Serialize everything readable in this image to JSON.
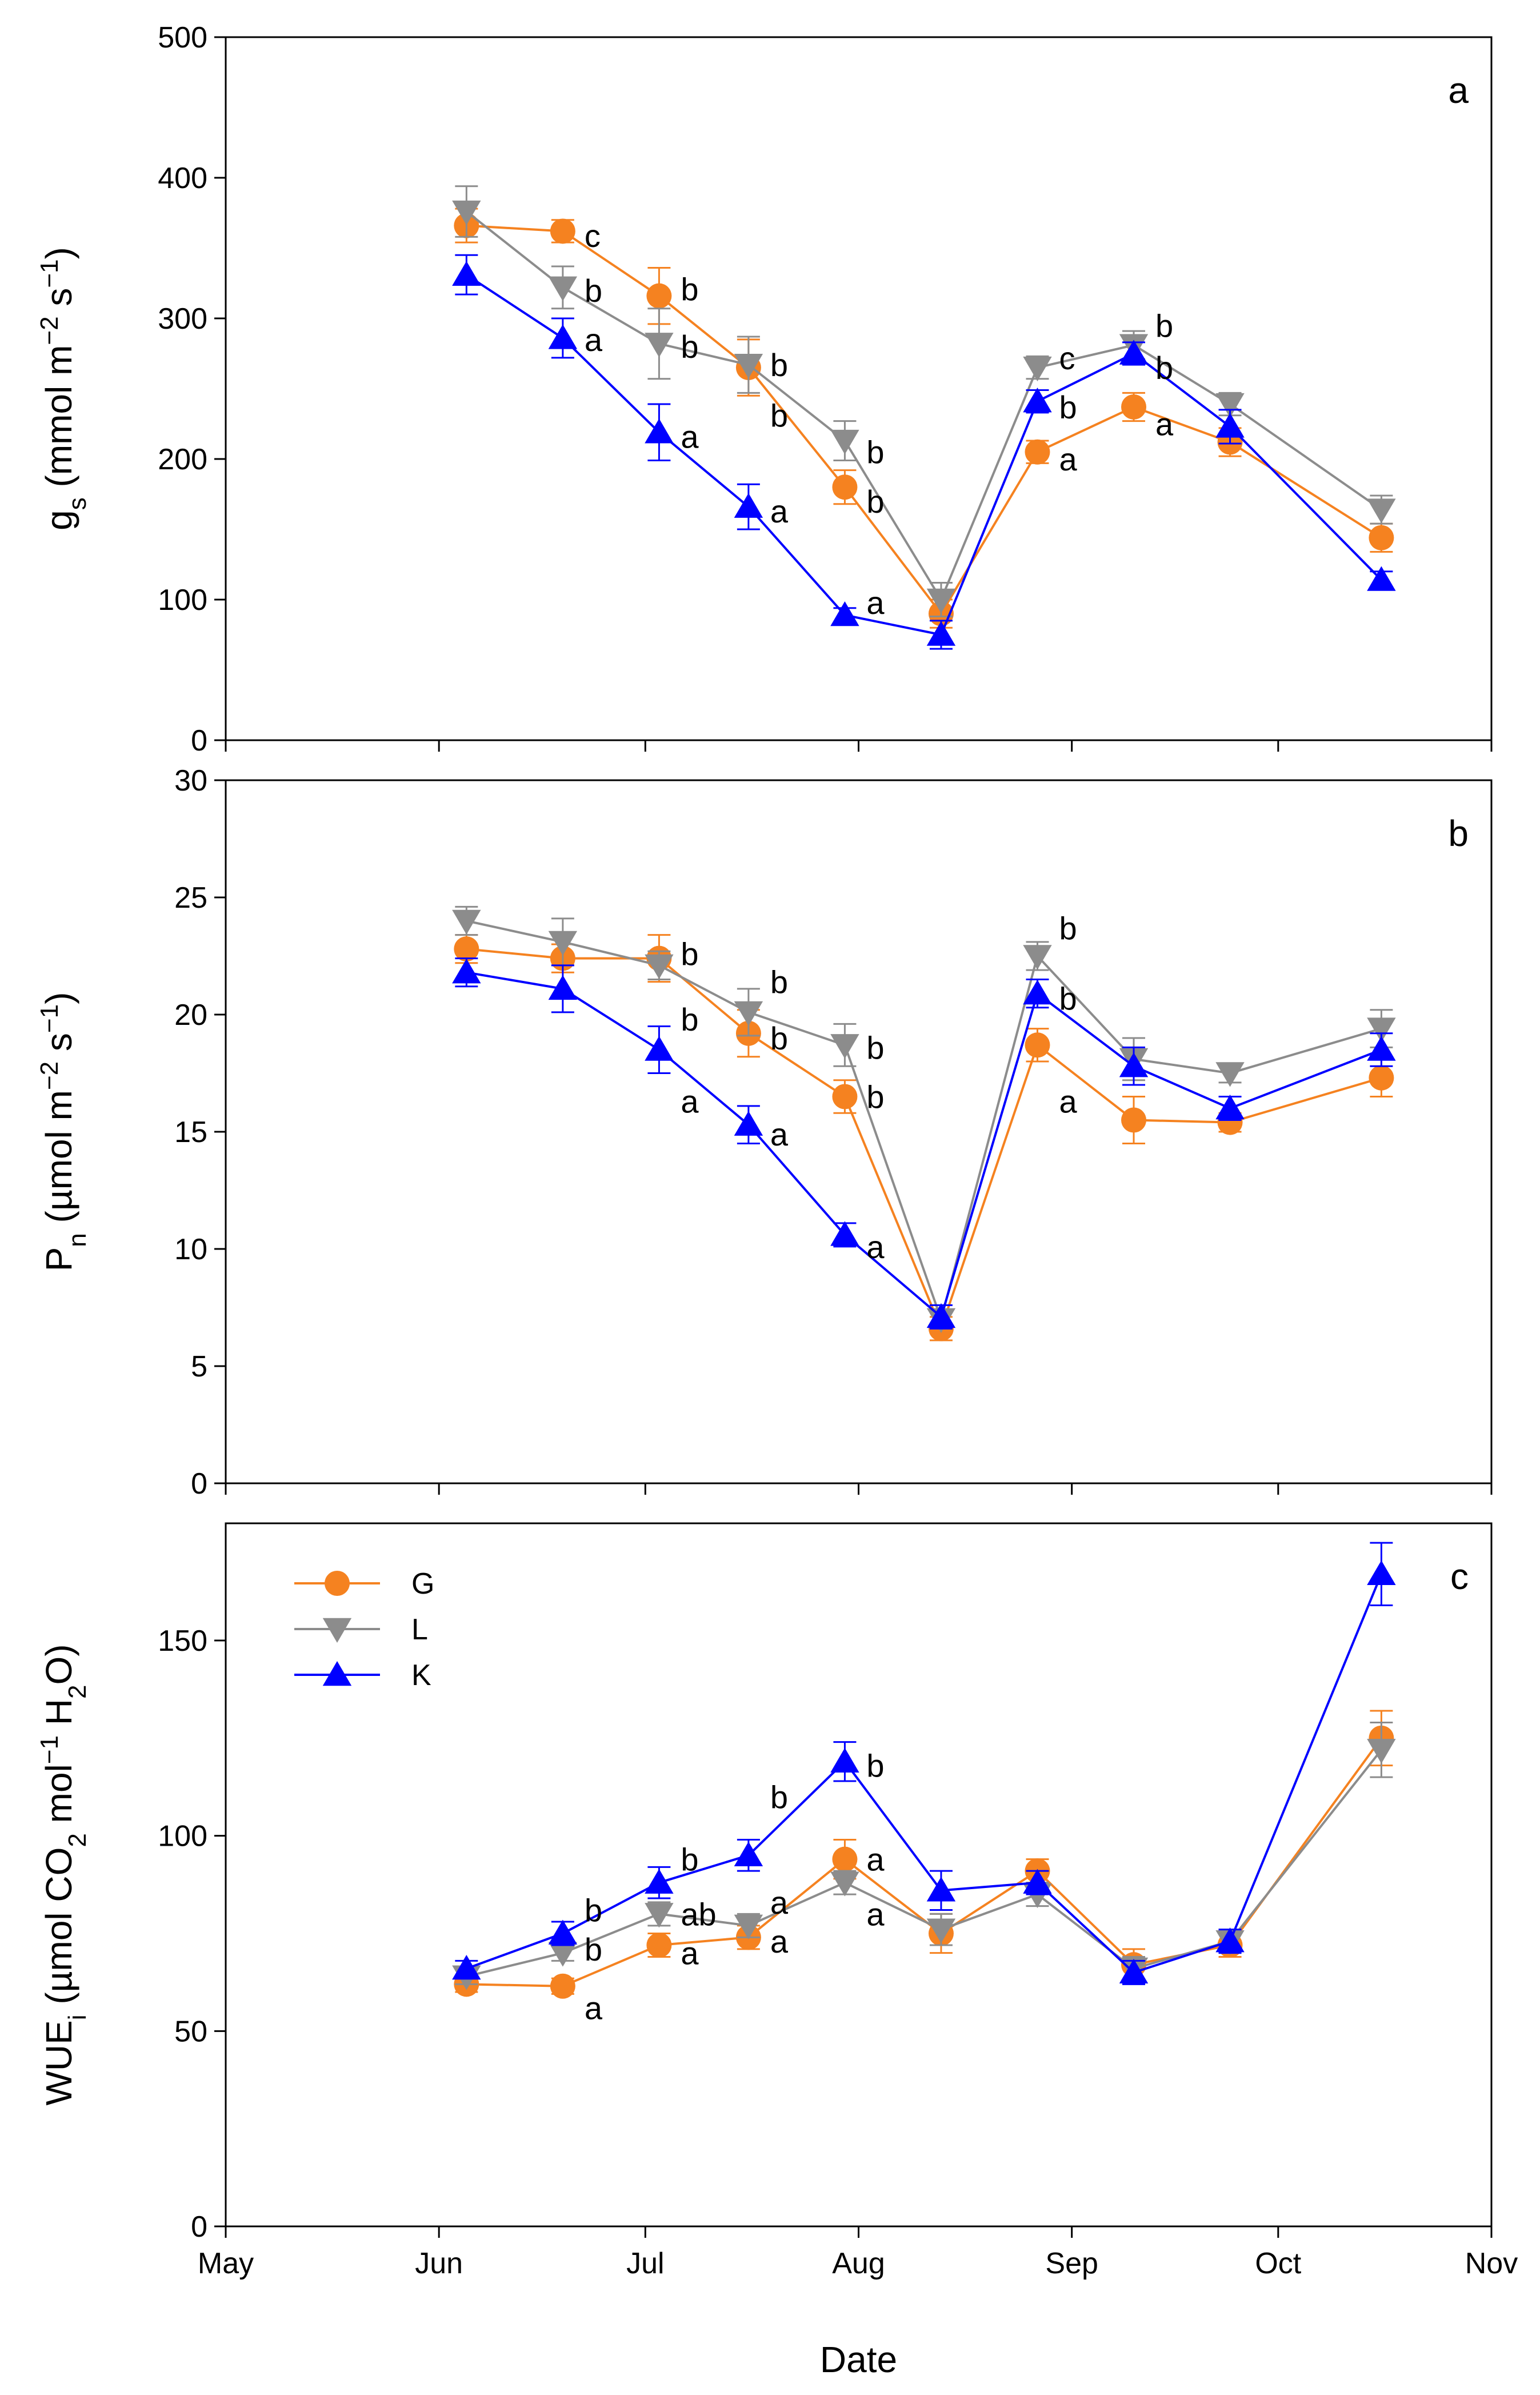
{
  "colors": {
    "G": "#F58220",
    "L": "#8C8C8C",
    "K": "#0000FF",
    "axis": "#000000"
  },
  "chart_data": [
    {
      "type": "line",
      "panel": "a",
      "ylabel": {
        "main": "g",
        "sub": "s",
        "rest": " (mmol m",
        "sup1": "−2",
        "mid": " s",
        "sup2": "−1",
        "end": ")"
      },
      "ylim": [
        0,
        500
      ],
      "yticks": [
        0,
        100,
        200,
        300,
        400,
        500
      ],
      "ytick_labels": [
        "0",
        "100",
        "200",
        "300",
        "400",
        "500"
      ],
      "x_dates": [
        "06-05",
        "06-19",
        "07-03",
        "07-16",
        "07-30",
        "08-13",
        "08-27",
        "09-10",
        "09-24",
        "10-16"
      ],
      "series": [
        {
          "name": "G",
          "marker": "circle",
          "values": [
            366,
            362,
            316,
            265,
            180,
            90,
            205,
            237,
            212,
            144
          ],
          "errors": [
            12,
            8,
            20,
            20,
            12,
            10,
            8,
            10,
            10,
            10
          ]
        },
        {
          "name": "L",
          "marker": "triangle-down",
          "values": [
            376,
            322,
            282,
            267,
            213,
            100,
            265,
            281,
            239,
            164
          ],
          "errors": [
            18,
            15,
            25,
            20,
            14,
            12,
            8,
            10,
            8,
            10
          ]
        },
        {
          "name": "K",
          "marker": "triangle-up",
          "values": [
            331,
            286,
            219,
            166,
            89,
            75,
            241,
            275,
            223,
            114
          ],
          "errors": [
            14,
            14,
            20,
            16,
            5,
            10,
            8,
            8,
            12,
            6
          ]
        }
      ],
      "annotations": [
        {
          "text": "c",
          "date_index": 1,
          "y": 359
        },
        {
          "text": "b",
          "date_index": 1,
          "y": 320
        },
        {
          "text": "a",
          "date_index": 1,
          "y": 285
        },
        {
          "text": "b",
          "date_index": 2,
          "y": 321
        },
        {
          "text": "b",
          "date_index": 2,
          "y": 280
        },
        {
          "text": "a",
          "date_index": 2,
          "y": 216
        },
        {
          "text": "b",
          "date_index": 3,
          "y": 267
        },
        {
          "text": "b",
          "date_index": 3,
          "y": 231
        },
        {
          "text": "a",
          "date_index": 3,
          "y": 163
        },
        {
          "text": "b",
          "date_index": 4,
          "y": 205
        },
        {
          "text": "b",
          "date_index": 4,
          "y": 170
        },
        {
          "text": "a",
          "date_index": 4,
          "y": 98
        },
        {
          "text": "c",
          "date_index": 6,
          "y": 272
        },
        {
          "text": "b",
          "date_index": 6,
          "y": 237
        },
        {
          "text": "a",
          "date_index": 6,
          "y": 200
        },
        {
          "text": "b",
          "date_index": 7,
          "y": 295
        },
        {
          "text": "b",
          "date_index": 7,
          "y": 265
        },
        {
          "text": "a",
          "date_index": 7,
          "y": 225
        }
      ]
    },
    {
      "type": "line",
      "panel": "b",
      "ylabel": {
        "main": "P",
        "sub": "n",
        "rest": " (µmol m",
        "sup1": "−2",
        "mid": " s",
        "sup2": "−1",
        "end": ")"
      },
      "ylim": [
        0,
        30
      ],
      "yticks": [
        0,
        5,
        10,
        15,
        20,
        25,
        30
      ],
      "ytick_labels": [
        "0",
        "5",
        "10",
        "15",
        "20",
        "25",
        "30"
      ],
      "x_dates": [
        "06-05",
        "06-19",
        "07-03",
        "07-16",
        "07-30",
        "08-13",
        "08-27",
        "09-10",
        "09-24",
        "10-16"
      ],
      "series": [
        {
          "name": "G",
          "marker": "circle",
          "values": [
            22.8,
            22.4,
            22.4,
            19.2,
            16.5,
            6.6,
            18.7,
            15.5,
            15.4,
            17.3
          ],
          "errors": [
            0.6,
            0.6,
            1.0,
            1.0,
            0.7,
            0.5,
            0.7,
            1.0,
            0.4,
            0.8
          ]
        },
        {
          "name": "L",
          "marker": "triangle-down",
          "values": [
            24.0,
            23.1,
            22.1,
            20.1,
            18.7,
            7.0,
            22.5,
            18.1,
            17.5,
            19.4
          ],
          "errors": [
            0.6,
            1.0,
            0.6,
            1.0,
            0.9,
            0.4,
            0.6,
            0.9,
            0.4,
            0.8
          ]
        },
        {
          "name": "K",
          "marker": "triangle-up",
          "values": [
            21.8,
            21.1,
            18.5,
            15.3,
            10.6,
            7.1,
            20.9,
            17.8,
            16.0,
            18.5
          ],
          "errors": [
            0.6,
            1.0,
            1.0,
            0.8,
            0.5,
            0.5,
            0.6,
            0.8,
            0.5,
            0.7
          ]
        }
      ],
      "annotations": [
        {
          "text": "b",
          "date_index": 2,
          "y": 22.6
        },
        {
          "text": "b",
          "date_index": 2,
          "y": 19.8
        },
        {
          "text": "a",
          "date_index": 2,
          "y": 16.3
        },
        {
          "text": "b",
          "date_index": 3,
          "y": 21.4
        },
        {
          "text": "b",
          "date_index": 3,
          "y": 19.0
        },
        {
          "text": "a",
          "date_index": 3,
          "y": 14.9
        },
        {
          "text": "b",
          "date_index": 4,
          "y": 18.6
        },
        {
          "text": "b",
          "date_index": 4,
          "y": 16.5
        },
        {
          "text": "a",
          "date_index": 4,
          "y": 10.1
        },
        {
          "text": "b",
          "date_index": 6,
          "y": 23.7
        },
        {
          "text": "b",
          "date_index": 6,
          "y": 20.7
        },
        {
          "text": "a",
          "date_index": 6,
          "y": 16.3
        }
      ]
    },
    {
      "type": "line",
      "panel": "c",
      "ylabel": {
        "main": "WUE",
        "sub": "i",
        "rest": " (µmol CO",
        "sub2": "2",
        "mid": " mol",
        "sup1": "−1",
        "mid2": " H",
        "sub3": "2",
        "end": "O)"
      },
      "ylim": [
        0,
        180
      ],
      "yticks": [
        0,
        50,
        100,
        150
      ],
      "ytick_labels": [
        "0",
        "50",
        "100",
        "150"
      ],
      "xlabel": "Date",
      "xlim": [
        "05-01",
        "11-01"
      ],
      "xtick_labels": [
        "May",
        "Jun",
        "Jul",
        "Aug",
        "Sep",
        "Oct",
        "Nov"
      ],
      "xtick_dates": [
        "05-01",
        "06-01",
        "07-01",
        "08-01",
        "09-01",
        "10-01",
        "11-01"
      ],
      "x_dates": [
        "06-05",
        "06-19",
        "07-03",
        "07-16",
        "07-30",
        "08-13",
        "08-27",
        "09-10",
        "09-24",
        "10-16"
      ],
      "series": [
        {
          "name": "G",
          "marker": "circle",
          "values": [
            62,
            61.5,
            72,
            74,
            94,
            75,
            91,
            67,
            72,
            125
          ],
          "errors": [
            2,
            2,
            3,
            3,
            5,
            5,
            3,
            4,
            3,
            7
          ]
        },
        {
          "name": "L",
          "marker": "triangle-down",
          "values": [
            64,
            70,
            80,
            77,
            88,
            76,
            85,
            66,
            73,
            122
          ],
          "errors": [
            2,
            2,
            3,
            3,
            3,
            4,
            3,
            3,
            3,
            7
          ]
        },
        {
          "name": "K",
          "marker": "triangle-up",
          "values": [
            66,
            75,
            88,
            95,
            119,
            86,
            88,
            65,
            73,
            167
          ],
          "errors": [
            2,
            3,
            4,
            4,
            5,
            5,
            3,
            3,
            3,
            8
          ]
        }
      ],
      "legend": {
        "position": "top-left",
        "entries": [
          "G",
          "L",
          "K"
        ]
      },
      "annotations": [
        {
          "text": "b",
          "date_index": 1,
          "y": 81
        },
        {
          "text": "b",
          "date_index": 1,
          "y": 71
        },
        {
          "text": "a",
          "date_index": 1,
          "y": 56
        },
        {
          "text": "b",
          "date_index": 2,
          "y": 94
        },
        {
          "text": "ab",
          "date_index": 2,
          "y": 80
        },
        {
          "text": "a",
          "date_index": 2,
          "y": 70
        },
        {
          "text": "b",
          "date_index": 3,
          "y": 110
        },
        {
          "text": "a",
          "date_index": 3,
          "y": 83
        },
        {
          "text": "a",
          "date_index": 3,
          "y": 73
        },
        {
          "text": "b",
          "date_index": 4,
          "y": 118
        },
        {
          "text": "a",
          "date_index": 4,
          "y": 94
        },
        {
          "text": "a",
          "date_index": 4,
          "y": 80
        }
      ]
    }
  ]
}
